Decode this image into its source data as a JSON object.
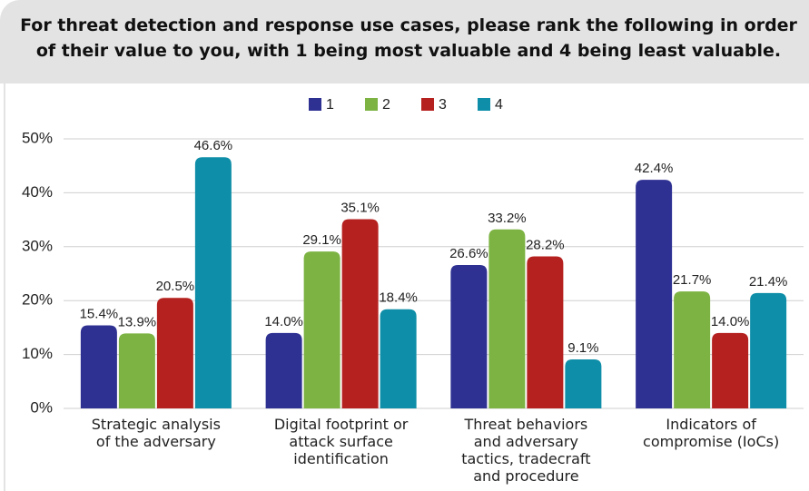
{
  "chart_data": {
    "type": "bar",
    "title": "For threat detection and response use cases, please rank the following in order of their value to you, with 1 being most valuable and 4 being least valuable.",
    "categories": [
      "Strategic analysis of the adversary",
      "Digital footprint or attack surface identification",
      "Threat behaviors and adversary tactics, tradecraft and procedure",
      "Indicators of compromise (IoCs)"
    ],
    "series": [
      {
        "name": "1",
        "color": "#2e3192",
        "values": [
          15.4,
          14.0,
          26.6,
          42.4
        ],
        "value_labels": [
          "15.4%",
          "14.0%",
          "26.6%",
          "42.4%"
        ]
      },
      {
        "name": "2",
        "color": "#7cb342",
        "values": [
          13.9,
          29.1,
          33.2,
          21.7
        ],
        "value_labels": [
          "13.9%",
          "29.1%",
          "33.2%",
          "21.7%"
        ]
      },
      {
        "name": "3",
        "color": "#b5211f",
        "values": [
          20.5,
          35.1,
          28.2,
          14.0
        ],
        "value_labels": [
          "20.5%",
          "35.1%",
          "28.2%",
          "14.0%"
        ]
      },
      {
        "name": "4",
        "color": "#0e8ea8",
        "values": [
          46.6,
          18.4,
          9.1,
          21.4
        ],
        "value_labels": [
          "46.6%",
          "18.4%",
          "9.1%",
          "21.4%"
        ]
      }
    ],
    "ylim": [
      0,
      50
    ],
    "yticks": [
      {
        "value": 0,
        "label": "0%"
      },
      {
        "value": 10,
        "label": "10%"
      },
      {
        "value": 20,
        "label": "20%"
      },
      {
        "value": 30,
        "label": "30%"
      },
      {
        "value": 40,
        "label": "40%"
      },
      {
        "value": 50,
        "label": "50%"
      }
    ],
    "grid": true
  }
}
